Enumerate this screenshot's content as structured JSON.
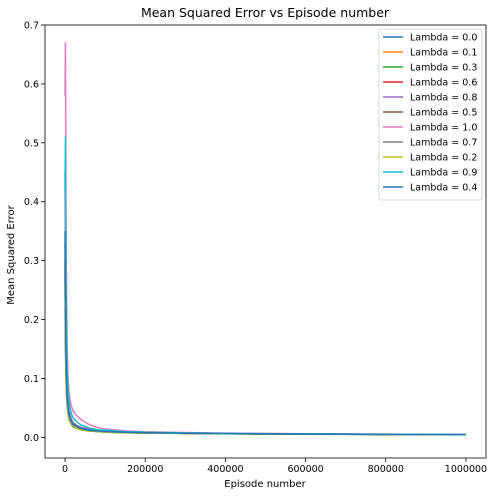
{
  "chart_data": {
    "type": "line",
    "title": "Mean Squared Error vs Episode number",
    "xlabel": "Episode number",
    "ylabel": "Mean Squared Error",
    "xlim": [
      -50000,
      1050000
    ],
    "ylim": [
      -0.035,
      0.7
    ],
    "xticks": [
      0,
      200000,
      400000,
      600000,
      800000,
      1000000
    ],
    "xtick_labels": [
      "0",
      "200000",
      "400000",
      "600000",
      "800000",
      "1000000"
    ],
    "yticks": [
      0.0,
      0.1,
      0.2,
      0.3,
      0.4,
      0.5,
      0.6,
      0.7
    ],
    "ytick_labels": [
      "0.0",
      "0.1",
      "0.2",
      "0.3",
      "0.4",
      "0.5",
      "0.6",
      "0.7"
    ],
    "grid": false,
    "legend_position": "top-right",
    "x": [
      0,
      1000,
      2000,
      3000,
      5000,
      7500,
      10000,
      15000,
      20000,
      30000,
      40000,
      60000,
      80000,
      100000,
      150000,
      200000,
      300000,
      400000,
      600000,
      800000,
      1000000
    ],
    "series": [
      {
        "name": "Lambda = 0.0",
        "color": "#1f77b4",
        "values": [
          0.22,
          0.15,
          0.11,
          0.085,
          0.055,
          0.04,
          0.03,
          0.022,
          0.018,
          0.015,
          0.013,
          0.011,
          0.01,
          0.009,
          0.008,
          0.0075,
          0.0068,
          0.0062,
          0.0055,
          0.005,
          0.0045
        ]
      },
      {
        "name": "Lambda = 0.1",
        "color": "#ff7f0e",
        "values": [
          0.25,
          0.17,
          0.12,
          0.09,
          0.058,
          0.042,
          0.032,
          0.023,
          0.019,
          0.015,
          0.013,
          0.011,
          0.01,
          0.009,
          0.008,
          0.0075,
          0.0068,
          0.0062,
          0.0055,
          0.005,
          0.0045
        ]
      },
      {
        "name": "Lambda = 0.3",
        "color": "#2ca02c",
        "values": [
          0.27,
          0.18,
          0.13,
          0.095,
          0.06,
          0.044,
          0.033,
          0.024,
          0.019,
          0.016,
          0.013,
          0.011,
          0.01,
          0.009,
          0.008,
          0.0075,
          0.0068,
          0.0062,
          0.0055,
          0.005,
          0.0045
        ]
      },
      {
        "name": "Lambda = 0.6",
        "color": "#d62728",
        "values": [
          0.3,
          0.2,
          0.14,
          0.1,
          0.065,
          0.048,
          0.036,
          0.026,
          0.021,
          0.017,
          0.014,
          0.012,
          0.011,
          0.01,
          0.0085,
          0.0078,
          0.007,
          0.0064,
          0.0056,
          0.0051,
          0.0046
        ]
      },
      {
        "name": "Lambda = 0.8",
        "color": "#9467bd",
        "values": [
          0.45,
          0.3,
          0.2,
          0.14,
          0.085,
          0.06,
          0.045,
          0.032,
          0.025,
          0.02,
          0.017,
          0.014,
          0.012,
          0.011,
          0.009,
          0.0082,
          0.0073,
          0.0066,
          0.0058,
          0.0052,
          0.0047
        ]
      },
      {
        "name": "Lambda = 0.5",
        "color": "#8c564b",
        "values": [
          0.29,
          0.19,
          0.135,
          0.098,
          0.062,
          0.046,
          0.035,
          0.025,
          0.02,
          0.016,
          0.014,
          0.012,
          0.011,
          0.0095,
          0.0083,
          0.0076,
          0.0069,
          0.0063,
          0.0056,
          0.005,
          0.0045
        ]
      },
      {
        "name": "Lambda = 1.0",
        "color": "#e377c2",
        "values": [
          0.58,
          0.67,
          0.45,
          0.3,
          0.16,
          0.1,
          0.075,
          0.055,
          0.045,
          0.036,
          0.03,
          0.022,
          0.017,
          0.014,
          0.011,
          0.0095,
          0.0082,
          0.0072,
          0.0062,
          0.0055,
          0.0049
        ]
      },
      {
        "name": "Lambda = 0.7",
        "color": "#7f7f7f",
        "values": [
          0.33,
          0.22,
          0.15,
          0.11,
          0.07,
          0.051,
          0.038,
          0.027,
          0.022,
          0.018,
          0.015,
          0.012,
          0.011,
          0.01,
          0.0087,
          0.0079,
          0.0071,
          0.0064,
          0.0057,
          0.0051,
          0.0046
        ]
      },
      {
        "name": "Lambda = 0.2",
        "color": "#bcbd22",
        "values": [
          0.26,
          0.175,
          0.125,
          0.092,
          0.059,
          0.043,
          0.032,
          0.023,
          0.019,
          0.015,
          0.013,
          0.011,
          0.01,
          0.009,
          0.008,
          0.0075,
          0.0068,
          0.0062,
          0.0055,
          0.005,
          0.0045
        ]
      },
      {
        "name": "Lambda = 0.9",
        "color": "#17becf",
        "values": [
          0.42,
          0.51,
          0.34,
          0.22,
          0.12,
          0.08,
          0.06,
          0.042,
          0.033,
          0.026,
          0.021,
          0.016,
          0.013,
          0.012,
          0.0098,
          0.0087,
          0.0076,
          0.0068,
          0.0059,
          0.0053,
          0.0047
        ]
      },
      {
        "name": "Lambda = 0.4",
        "color": "#1f77b4",
        "values": [
          0.35,
          0.24,
          0.16,
          0.12,
          0.072,
          0.052,
          0.039,
          0.028,
          0.022,
          0.018,
          0.015,
          0.012,
          0.011,
          0.01,
          0.0086,
          0.0078,
          0.007,
          0.0064,
          0.0056,
          0.0051,
          0.0046
        ]
      }
    ]
  }
}
